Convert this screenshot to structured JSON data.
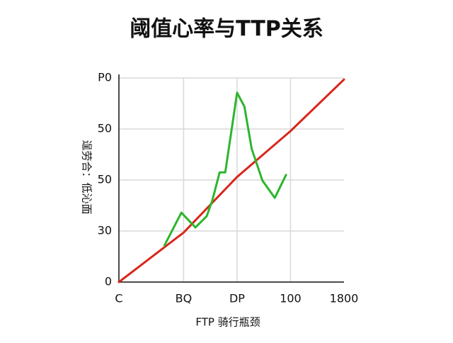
{
  "chart_data": {
    "type": "line",
    "title": "阈值心率与TTP关系",
    "x_label": "FTP 骑行瓶颈",
    "y_label": "逞劳合：低沁面",
    "xlim": [
      0,
      4
    ],
    "ylim": [
      0,
      4
    ],
    "xticks": [
      {
        "value": 0,
        "label": "C"
      },
      {
        "value": 1.15,
        "label": "BQ"
      },
      {
        "value": 2.1,
        "label": "DP"
      },
      {
        "value": 3.05,
        "label": "100"
      },
      {
        "value": 4,
        "label": "1800"
      }
    ],
    "yticks": [
      {
        "value": 0,
        "label": "0"
      },
      {
        "value": 1,
        "label": "30"
      },
      {
        "value": 2,
        "label": "50"
      },
      {
        "value": 3,
        "label": "50"
      },
      {
        "value": 4,
        "label": "P0"
      }
    ],
    "grid": true,
    "series": [
      {
        "color": "#d9261c",
        "x": [
          0,
          1.15,
          2.1,
          3.05,
          4
        ],
        "values": [
          0,
          0.97,
          2.06,
          2.96,
          3.97
        ]
      },
      {
        "color": "#2db52d",
        "x": [
          0.81,
          1.11,
          1.36,
          1.56,
          1.66,
          1.79,
          1.89,
          2.1,
          2.23,
          2.36,
          2.55,
          2.77,
          2.97
        ],
        "values": [
          0.72,
          1.36,
          1.07,
          1.29,
          1.6,
          2.15,
          2.15,
          3.71,
          3.44,
          2.61,
          1.99,
          1.65,
          2.1
        ]
      }
    ]
  }
}
